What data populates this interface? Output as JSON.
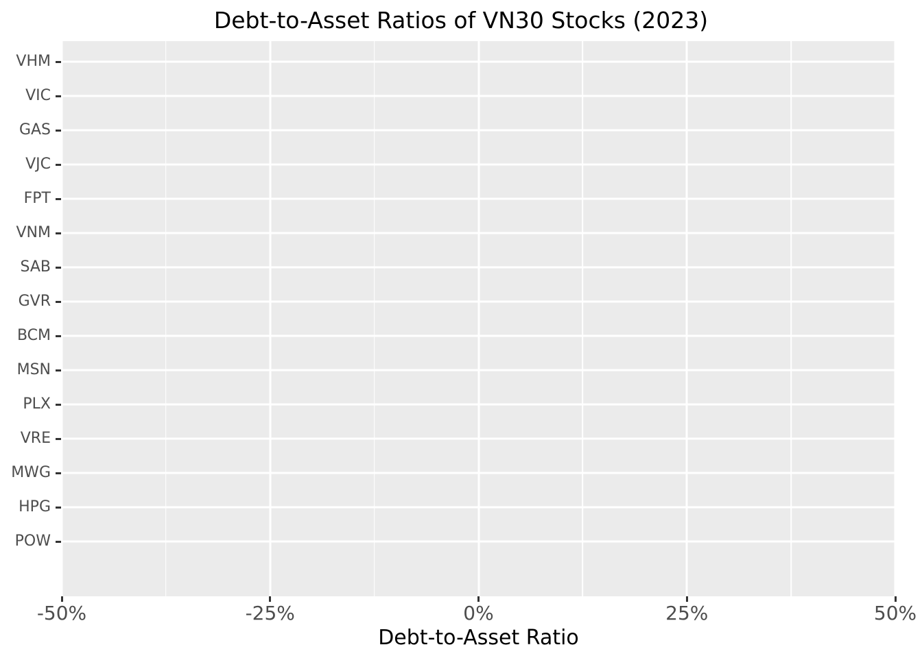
{
  "chart_data": {
    "type": "bar",
    "orientation": "horizontal",
    "title": "Debt-to-Asset Ratios of VN30 Stocks (2023)",
    "xlabel": "Debt-to-Asset Ratio",
    "ylabel": "",
    "categories": [
      "VHM",
      "VIC",
      "GAS",
      "VJC",
      "FPT",
      "VNM",
      "SAB",
      "GVR",
      "BCM",
      "MSN",
      "PLX",
      "VRE",
      "MWG",
      "HPG",
      "POW"
    ],
    "series": [],
    "rendered_marks": "none - panel is empty, no bars or points drawn",
    "x_tick_labels": [
      "-50%",
      "-25%",
      "0%",
      "25%",
      "50%"
    ],
    "x_tick_values": [
      -0.5,
      -0.25,
      0.0,
      0.25,
      0.5
    ],
    "xlim": [
      -0.5,
      0.5
    ],
    "grid": {
      "style": "ggplot",
      "major": true,
      "minor_x": true,
      "minor_y": false,
      "gridline_color": "#FFFFFF"
    },
    "legend": "none",
    "colors": {
      "panel_background": "#EBEBEB",
      "figure_background": "#FFFFFF",
      "gridline": "#FFFFFF",
      "tick_mark": "#333333",
      "tick_label": "#4D4D4D",
      "title_text": "#000000",
      "axis_title_text": "#000000"
    }
  }
}
